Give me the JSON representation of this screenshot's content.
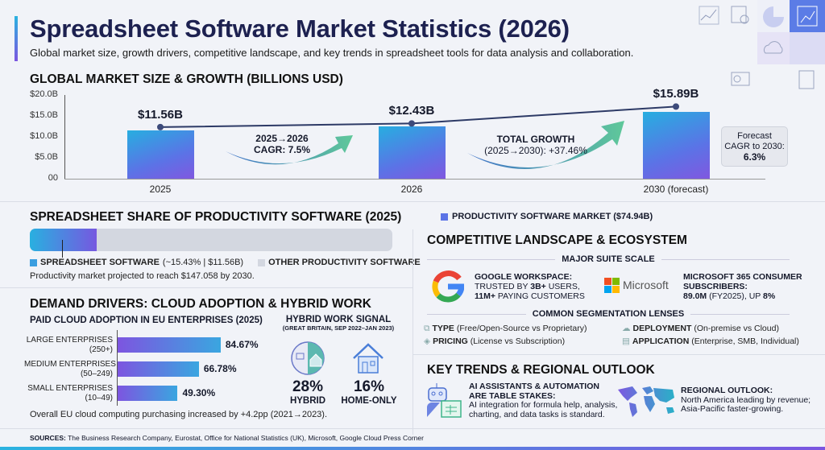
{
  "header": {
    "title": "Spreadsheet Software Market Statistics (2026)",
    "subtitle": "Global market size, growth drivers, competitive landscape, and key trends in spreadsheet tools for data analysis and collaboration."
  },
  "market": {
    "heading": "GLOBAL MARKET SIZE & GROWTH (BILLIONS USD)",
    "arrow1": {
      "line1": "2025→2026",
      "line2": "CAGR: 7.5%"
    },
    "arrow2": {
      "line1": "TOTAL GROWTH",
      "line2": "(2025→2030): +37.46%"
    },
    "callout": {
      "line1": "Forecast",
      "line2": "CAGR to 2030:",
      "line3": "6.3%"
    }
  },
  "chart_data": [
    {
      "type": "bar",
      "title": "GLOBAL MARKET SIZE & GROWTH (BILLIONS USD)",
      "categories": [
        "2025",
        "2026",
        "2030 (forecast)"
      ],
      "values": [
        11.56,
        12.43,
        15.89
      ],
      "data_labels": [
        "$11.56B",
        "$12.43B",
        "$15.89B"
      ],
      "yticks": [
        "00",
        "$5.0B",
        "$10.0B",
        "$15.0B",
        "$20.0B"
      ],
      "ylim": [
        0,
        20
      ],
      "overlay": "line"
    },
    {
      "type": "bar",
      "orientation": "horizontal",
      "title": "PAID CLOUD ADOPTION IN EU ENTERPRISES (2025)",
      "categories": [
        [
          "LARGE ENTERPRISES",
          "(250+)"
        ],
        [
          "MEDIUM ENTERPRISES",
          "(50–249)"
        ],
        [
          "SMALL ENTERPRISES",
          "(10–49)"
        ]
      ],
      "values": [
        84.67,
        66.78,
        49.3
      ],
      "data_labels": [
        "84.67%",
        "66.78%",
        "49.30%"
      ]
    },
    {
      "type": "bar",
      "orientation": "horizontal",
      "stacked": true,
      "title": "SPREADSHEET SHARE OF PRODUCTIVITY SOFTWARE (2025)",
      "values": [
        15.43,
        84.57
      ]
    }
  ],
  "share": {
    "heading": "SPREADSHEET SHARE OF PRODUCTIVITY SOFTWARE (2025)",
    "market_legend": "PRODUCTIVITY SOFTWARE MARKET ($74.94B)",
    "legend_spreadsheet_bold": "SPREADSHEET SOFTWARE",
    "legend_spreadsheet_rest": " (~15.43% | $11.56B)",
    "legend_other": "OTHER PRODUCTIVITY SOFTWARE",
    "note": "Productivity market projected to reach $147.058 by 2030.",
    "colors": {
      "spreadsheet": "#3a9ee0",
      "other": "#d3d7e0"
    }
  },
  "demand": {
    "heading": "DEMAND DRIVERS: CLOUD ADOPTION & HYBRID WORK",
    "subheading": "PAID CLOUD ADOPTION IN EU ENTERPRISES (2025)",
    "note": "Overall EU cloud computing purchasing increased by +4.2pp (2021→2023).",
    "hybrid": {
      "title": "HYBRID WORK SIGNAL",
      "subtitle": "(GREAT BRITAIN, SEP 2022–JAN 2023)",
      "hybrid_value": "28%",
      "hybrid_label": "HYBRID",
      "home_value": "16%",
      "home_label": "HOME-ONLY"
    }
  },
  "sources": {
    "label": "SOURCES:",
    "text": " The Business Research Company, Eurostat, Office for National Statistics (UK), Microsoft, Google Cloud Press Corner"
  },
  "competitive": {
    "heading": "COMPETITIVE LANDSCAPE & ECOSYSTEM",
    "suite_heading": "MAJOR SUITE SCALE",
    "google": {
      "title": "GOOGLE WORKSPACE:",
      "l2a": "TRUSTED BY ",
      "l2b": "3B+",
      "l2c": " USERS,",
      "l3a": "11M+",
      "l3b": " PAYING CUSTOMERS"
    },
    "microsoft": {
      "logo_text": "Microsoft",
      "title1": "MICROSOFT 365 CONSUMER",
      "title2": "SUBSCRIBERS:",
      "l3a": "89.0M",
      "l3b": " (FY2025), UP ",
      "l3c": "8%"
    },
    "seg_heading": "COMMON SEGMENTATION LENSES",
    "lenses": [
      {
        "b": "TYPE",
        "t": " (Free/Open-Source vs Proprietary)",
        "icon": "hierarchy-icon"
      },
      {
        "b": "DEPLOYMENT",
        "t": " (On-premise vs Cloud)",
        "icon": "cloud-icon"
      },
      {
        "b": "PRICING",
        "t": " (License vs Subscription)",
        "icon": "tag-icon"
      },
      {
        "b": "APPLICATION",
        "t": " (Enterprise, SMB, Individual)",
        "icon": "document-icon"
      }
    ]
  },
  "trends": {
    "heading": "KEY TRENDS & REGIONAL OUTLOOK",
    "ai_title1": "AI ASSISTANTS & AUTOMATION",
    "ai_title2": "ARE TABLE STAKES:",
    "ai_text1": "AI integration for formula help, analysis,",
    "ai_text2": "charting, and data tasks is standard.",
    "region_title": "REGIONAL OUTLOOK:",
    "region_text1": "North America leading by revenue;",
    "region_text2": "Asia-Pacific faster-growing."
  },
  "colors": {
    "title": "#1d2150",
    "bar_start": "#27aee0",
    "bar_end": "#8058e0",
    "arrow": "#4fbf9a"
  }
}
